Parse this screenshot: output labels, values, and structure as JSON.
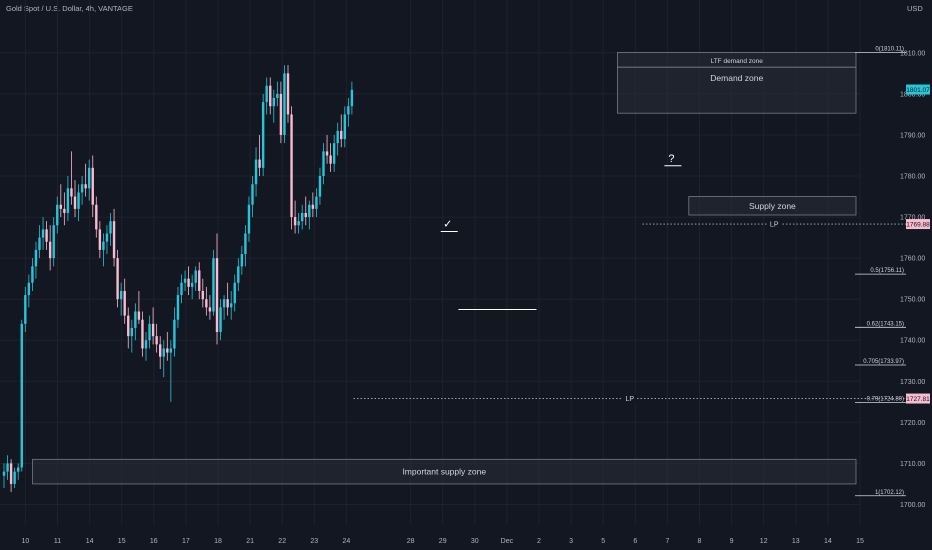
{
  "header": {
    "symbol": "Gold Spot / U.S. Dollar, 4h, VANTAGE",
    "currency": "USD"
  },
  "colors": {
    "background": "#131722",
    "bull": "#26c6da",
    "bear": "#f8bbd0",
    "grid": "#1e222d",
    "zone_fill": "#2a2e39",
    "zone_stroke": "#787b86",
    "text": "#b2b5be"
  },
  "chart_data": {
    "type": "candlestick",
    "ylim": [
      1695,
      1818
    ],
    "x_count": 240,
    "y_ticks": [
      "1810.00",
      "1800.00",
      "1790.00",
      "1780.00",
      "1770.00",
      "1760.00",
      "1750.00",
      "1740.00",
      "1730.00",
      "1720.00",
      "1710.00",
      "1700.00"
    ],
    "y_tick_values": [
      1810,
      1800,
      1790,
      1780,
      1770,
      1760,
      1750,
      1740,
      1730,
      1720,
      1710,
      1700
    ],
    "x_ticks": [
      {
        "label": "10",
        "i": 6
      },
      {
        "label": "11",
        "i": 15
      },
      {
        "label": "14",
        "i": 24
      },
      {
        "label": "15",
        "i": 33
      },
      {
        "label": "16",
        "i": 42
      },
      {
        "label": "17",
        "i": 51
      },
      {
        "label": "18",
        "i": 60
      },
      {
        "label": "21",
        "i": 69
      },
      {
        "label": "22",
        "i": 78
      },
      {
        "label": "23",
        "i": 87
      },
      {
        "label": "24",
        "i": 96
      },
      {
        "label": "28",
        "i": 114
      },
      {
        "label": "29",
        "i": 123
      },
      {
        "label": "30",
        "i": 132
      },
      {
        "label": "Dec",
        "i": 141
      },
      {
        "label": "2",
        "i": 150
      },
      {
        "label": "3",
        "i": 159
      },
      {
        "label": "5",
        "i": 168
      },
      {
        "label": "6",
        "i": 177
      },
      {
        "label": "7",
        "i": 186
      },
      {
        "label": "8",
        "i": 195
      },
      {
        "label": "9",
        "i": 204
      },
      {
        "label": "12",
        "i": 213
      },
      {
        "label": "13",
        "i": 222
      },
      {
        "label": "14",
        "i": 231
      },
      {
        "label": "15",
        "i": 240
      }
    ],
    "candles_ohlc_sequence": [
      1707,
      1710,
      1704,
      1708,
      1708,
      1712,
      1706,
      1710,
      1710,
      1711,
      1703,
      1705,
      1705,
      1709,
      1704,
      1708,
      1708,
      1710,
      1706,
      1709,
      1709,
      1745,
      1708,
      1744,
      1744,
      1753,
      1742,
      1751,
      1751,
      1756,
      1748,
      1754,
      1754,
      1760,
      1752,
      1758,
      1758,
      1764,
      1755,
      1762,
      1762,
      1768,
      1760,
      1765,
      1765,
      1770,
      1762,
      1767,
      1767,
      1769,
      1762,
      1764,
      1764,
      1768,
      1757,
      1760,
      1760,
      1770,
      1758,
      1768,
      1768,
      1775,
      1766,
      1773,
      1773,
      1778,
      1770,
      1772,
      1772,
      1776,
      1768,
      1771,
      1771,
      1780,
      1769,
      1777,
      1777,
      1786,
      1773,
      1775,
      1775,
      1779,
      1770,
      1772,
      1772,
      1778,
      1769,
      1776,
      1776,
      1780,
      1773,
      1778,
      1778,
      1783,
      1775,
      1777,
      1777,
      1784,
      1774,
      1782,
      1782,
      1785,
      1770,
      1773,
      1773,
      1775,
      1765,
      1767,
      1767,
      1769,
      1760,
      1762,
      1762,
      1766,
      1758,
      1764,
      1764,
      1768,
      1761,
      1766,
      1766,
      1771,
      1763,
      1769,
      1769,
      1772,
      1758,
      1760,
      1760,
      1762,
      1748,
      1750,
      1750,
      1754,
      1746,
      1752,
      1752,
      1755,
      1744,
      1746,
      1746,
      1748,
      1738,
      1741,
      1741,
      1745,
      1737,
      1743,
      1743,
      1749,
      1740,
      1747,
      1747,
      1752,
      1744,
      1745,
      1745,
      1747,
      1736,
      1738,
      1738,
      1742,
      1735,
      1740,
      1740,
      1746,
      1738,
      1744,
      1744,
      1748,
      1739,
      1741,
      1741,
      1744,
      1737,
      1739,
      1739,
      1741,
      1733,
      1736,
      1736,
      1740,
      1731,
      1738,
      1738,
      1742,
      1735,
      1737,
      1737,
      1740,
      1725,
      1738,
      1738,
      1748,
      1736,
      1745,
      1745,
      1753,
      1743,
      1751,
      1751,
      1756,
      1749,
      1754,
      1754,
      1757,
      1752,
      1755,
      1755,
      1758,
      1751,
      1753,
      1753,
      1756,
      1750,
      1754,
      1754,
      1758,
      1752,
      1757,
      1757,
      1759,
      1750,
      1752,
      1752,
      1755,
      1748,
      1750,
      1750,
      1753,
      1746,
      1748,
      1748,
      1751,
      1745,
      1747,
      1747,
      1762,
      1746,
      1760,
      1760,
      1766,
      1739,
      1742,
      1742,
      1750,
      1740,
      1748,
      1748,
      1751,
      1745,
      1750,
      1750,
      1754,
      1746,
      1748,
      1748,
      1752,
      1745,
      1749,
      1749,
      1756,
      1747,
      1754,
      1754,
      1760,
      1752,
      1758,
      1758,
      1763,
      1756,
      1761,
      1761,
      1768,
      1758,
      1766,
      1766,
      1775,
      1764,
      1773,
      1773,
      1780,
      1770,
      1778,
      1778,
      1787,
      1775,
      1784,
      1784,
      1790,
      1780,
      1782,
      1782,
      1800,
      1780,
      1798,
      1798,
      1804,
      1795,
      1802,
      1802,
      1804,
      1795,
      1797,
      1797,
      1801,
      1793,
      1799,
      1799,
      1803,
      1797,
      1800,
      1800,
      1803,
      1788,
      1790,
      1790,
      1807,
      1788,
      1805,
      1805,
      1807,
      1793,
      1795,
      1795,
      1797,
      1767,
      1770,
      1770,
      1774,
      1766,
      1768,
      1768,
      1771,
      1766,
      1769,
      1769,
      1773,
      1767,
      1771,
      1771,
      1775,
      1768,
      1770,
      1770,
      1774,
      1767,
      1773,
      1773,
      1776,
      1770,
      1772,
      1772,
      1777,
      1770,
      1775,
      1775,
      1782,
      1773,
      1780,
      1780,
      1788,
      1778,
      1786,
      1786,
      1790,
      1783,
      1785,
      1785,
      1788,
      1781,
      1783,
      1783,
      1790,
      1781,
      1788,
      1788,
      1793,
      1785,
      1791,
      1791,
      1795,
      1787,
      1789,
      1789,
      1797,
      1787,
      1795,
      1795,
      1799,
      1792,
      1797,
      1797,
      1803,
      1795,
      1801
    ],
    "zones": [
      {
        "label": "LTF demand zone",
        "y_top": 1810.11,
        "y_bottom": 1806.5,
        "i_start": 172,
        "i_end": 240
      },
      {
        "label": "Demand zone",
        "y_top": 1806.5,
        "y_bottom": 1795.3,
        "i_start": 172,
        "i_end": 240
      },
      {
        "label": "Supply zone",
        "y_top": 1775.0,
        "y_bottom": 1770.5,
        "i_start": 192,
        "i_end": 240
      },
      {
        "label": "Important supply zone",
        "y_top": 1711.0,
        "y_bottom": 1705.0,
        "i_start": 8,
        "i_end": 240
      }
    ],
    "price_labels": [
      {
        "text": "1801.07",
        "y": 1801.07,
        "style": "cyan"
      },
      {
        "text": "1769.88",
        "y": 1768.3,
        "style": "pink"
      },
      {
        "text": "1727.81",
        "y": 1725.8,
        "style": "pink"
      }
    ],
    "fib_levels": [
      {
        "label": "0(1810.11)",
        "y": 1810.11
      },
      {
        "label": "0.5(1756.11)",
        "y": 1756.11
      },
      {
        "label": "0.62(1743.15)",
        "y": 1743.15
      },
      {
        "label": "0.705(1733.97)",
        "y": 1733.97
      },
      {
        "label": "0.79(1724.80)",
        "y": 1724.8
      },
      {
        "label": "1(1702.12)",
        "y": 1702.12
      }
    ],
    "lp_lines": [
      {
        "label": "LP",
        "y": 1768.3,
        "i_start": 179
      },
      {
        "label": "LP",
        "y": 1725.8,
        "i_start": 98
      }
    ],
    "annotations": [
      {
        "text": "✓",
        "i": 125,
        "y": 1766
      },
      {
        "text": "?",
        "i": 188,
        "y": 1782
      }
    ]
  }
}
